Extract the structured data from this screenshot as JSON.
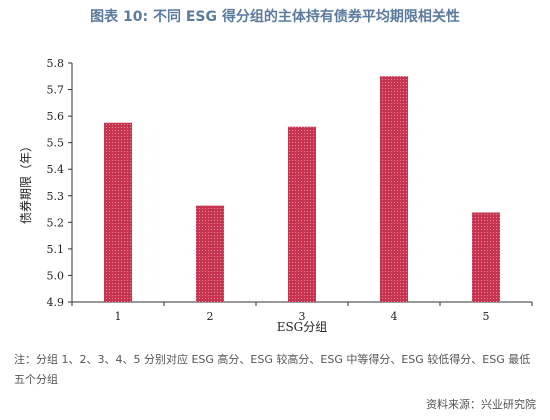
{
  "header": {
    "title": "图表 10: 不同 ESG 得分组的主体持有债券平均期限相关性"
  },
  "chart_data": {
    "type": "bar",
    "title": "",
    "xlabel": "ESG分组",
    "ylabel": "债券期限（年）",
    "categories": [
      "1",
      "2",
      "3",
      "4",
      "5"
    ],
    "values": [
      5.575,
      5.263,
      5.56,
      5.75,
      5.237
    ],
    "ylim": [
      4.9,
      5.8
    ],
    "yticks": [
      "4.9",
      "5.0",
      "5.1",
      "5.2",
      "5.3",
      "5.4",
      "5.5",
      "5.6",
      "5.7",
      "5.8"
    ],
    "bar_color": "#c7344f",
    "grid": false,
    "legend": "none"
  },
  "footer": {
    "note": "注：分组 1、2、3、4、5 分别对应 ESG 高分、ESG 较高分、ESG 中等得分、ESG 较低得分、ESG 最低五个分组",
    "source": "资料来源：兴业研究院"
  }
}
